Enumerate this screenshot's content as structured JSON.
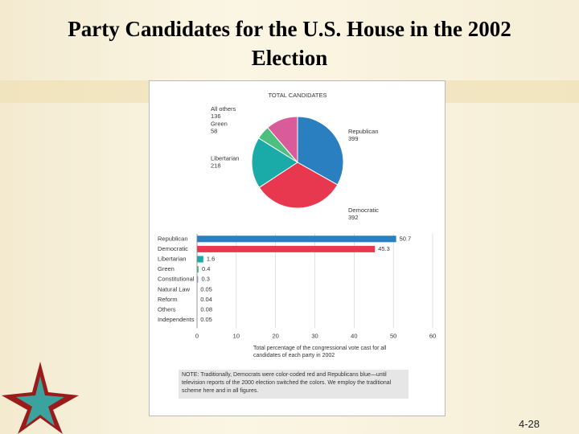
{
  "slide": {
    "title": "Party Candidates for the U.S. House in the 2002 Election",
    "page_number": "4-28"
  },
  "chart_data": [
    {
      "type": "pie",
      "title": "TOTAL CANDIDATES",
      "categories": [
        "Republican",
        "Democratic",
        "Libertarian",
        "Green",
        "All others"
      ],
      "values": [
        399,
        392,
        218,
        58,
        136
      ],
      "colors": [
        "#2a7fc0",
        "#e8384f",
        "#1aaba8",
        "#4dbf7f",
        "#d95b9a"
      ]
    },
    {
      "type": "hbar",
      "categories": [
        "Republican",
        "Democratic",
        "Libertarian",
        "Green",
        "Constitutional",
        "Natural Law",
        "Reform",
        "Others",
        "Independents"
      ],
      "values": [
        50.7,
        45.3,
        1.6,
        0.4,
        0.3,
        0.05,
        0.04,
        0.08,
        0.05
      ],
      "colors": [
        "#2a7fc0",
        "#e8384f",
        "#1aaba8",
        "#4dbf7f",
        "#8fa0c8",
        "#8fa0c8",
        "#8fa0c8",
        "#d95b9a",
        "#8fa0c8"
      ],
      "xlim": [
        0,
        60
      ],
      "xticks": [
        0,
        10,
        20,
        30,
        40,
        50,
        60
      ],
      "grid": true,
      "xlabel": "Total percentage of the congressional vote cast for all candidates of each party in 2002",
      "note": "NOTE: Traditionally, Democrats were color-coded red and Republicans blue—until television reports of the 2000 election switched the colors. We employ the traditional scheme here and in all figures."
    }
  ]
}
